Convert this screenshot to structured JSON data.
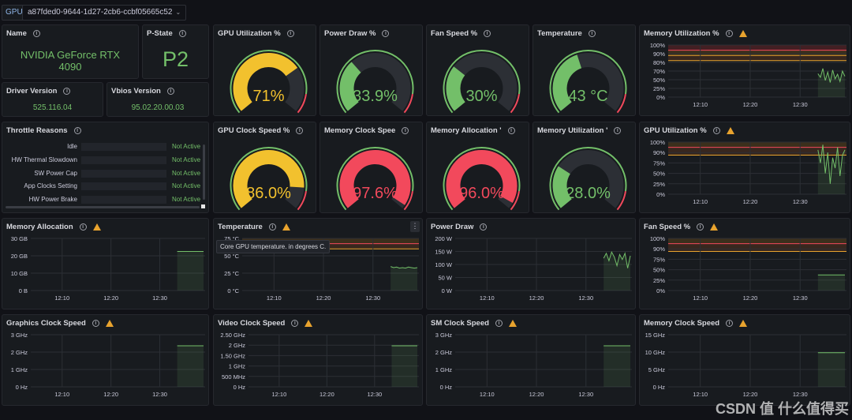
{
  "topbar": {
    "var_label": "GPU",
    "gpu_value": "a87fded0-9644-1d27-2cb6-ccbf05665c52"
  },
  "stats": {
    "name": {
      "title": "Name",
      "value_line1": "NVIDIA GeForce RTX",
      "value_line2": "4090"
    },
    "pstate": {
      "title": "P-State",
      "value": "P2"
    },
    "driver": {
      "title": "Driver Version",
      "value": "525.116.04"
    },
    "vbios": {
      "title": "Vbios Version",
      "value": "95.02.20.00.03"
    }
  },
  "throttle": {
    "title": "Throttle Reasons",
    "rows": [
      {
        "label": "Idle",
        "value": "Not Active"
      },
      {
        "label": "HW Thermal Slowdown",
        "value": "Not Active"
      },
      {
        "label": "SW Power Cap",
        "value": "Not Active"
      },
      {
        "label": "App Clocks Setting",
        "value": "Not Active"
      },
      {
        "label": "HW Power Brake",
        "value": "Not Active"
      }
    ]
  },
  "gauges": [
    {
      "title": "GPU Utilization %",
      "display": "71%",
      "value": 71,
      "color": "#f2c12e",
      "warn": false
    },
    {
      "title": "Power Draw %",
      "display": "33.9%",
      "value": 33.9,
      "color": "#73bf69",
      "warn": false
    },
    {
      "title": "Fan Speed %",
      "display": "30%",
      "value": 30,
      "color": "#73bf69",
      "warn": false
    },
    {
      "title": "Temperature",
      "display": "43 °C",
      "value": 43,
      "color": "#73bf69",
      "warn": false
    },
    {
      "title": "GPU Clock Speed %",
      "display": "86.0%",
      "value": 86,
      "color": "#f2c12e",
      "warn": false
    },
    {
      "title": "Memory Clock Spee",
      "display": "97.6%",
      "value": 97.6,
      "color": "#f2495c",
      "warn": false
    },
    {
      "title": "Memory Allocation '",
      "display": "96.0%",
      "value": 96,
      "color": "#f2495c",
      "warn": false
    },
    {
      "title": "Memory Utilization '",
      "display": "28.0%",
      "value": 28,
      "color": "#73bf69",
      "warn": false
    }
  ],
  "tooltip": {
    "text": "Core GPU temperature. in degrees C."
  },
  "watermark": {
    "text": "CSDN 值 什么值得买"
  },
  "chart_data": [
    {
      "type": "line",
      "title": "Memory Utilization %",
      "x_ticks": [
        "12:10",
        "12:20",
        "12:30"
      ],
      "y_ticks": [
        "100%",
        "90%",
        "80%",
        "70%",
        "50%",
        "25%",
        "0%"
      ],
      "ylim": [
        0,
        100
      ],
      "thresholds": [
        70,
        80,
        90
      ],
      "values": [
        45,
        38,
        55,
        32,
        48,
        28,
        52,
        35,
        44,
        30,
        50,
        40
      ]
    },
    {
      "type": "line",
      "title": "GPU Utilization %",
      "x_ticks": [
        "12:10",
        "12:20",
        "12:30"
      ],
      "y_ticks": [
        "100%",
        "90%",
        "75%",
        "50%",
        "25%",
        "0%"
      ],
      "ylim": [
        0,
        100
      ],
      "thresholds": [
        75,
        90
      ],
      "values": [
        85,
        60,
        95,
        40,
        80,
        20,
        70,
        50,
        90,
        35,
        75,
        85
      ]
    },
    {
      "type": "line",
      "title": "Memory Allocation",
      "x_ticks": [
        "12:10",
        "12:20",
        "12:30"
      ],
      "y_ticks": [
        "30 GB",
        "20 GB",
        "10 GB",
        "0 B"
      ],
      "ylim": [
        0,
        32
      ],
      "thresholds": [],
      "values": [
        24,
        24,
        24,
        24,
        24,
        24,
        24,
        24
      ]
    },
    {
      "type": "line",
      "title": "Temperature",
      "x_ticks": [
        "12:10",
        "12:20",
        "12:30"
      ],
      "y_ticks": [
        "75 °C",
        "50 °C",
        "25 °C",
        "0 °C"
      ],
      "ylim": [
        0,
        100
      ],
      "thresholds": [
        80,
        90
      ],
      "values": [
        46,
        44,
        45,
        43,
        44,
        43,
        45,
        44,
        43,
        44
      ]
    },
    {
      "type": "line",
      "title": "Power Draw",
      "x_ticks": [
        "12:10",
        "12:20",
        "12:30"
      ],
      "y_ticks": [
        "200 W",
        "150 W",
        "100 W",
        "50 W",
        "0 W"
      ],
      "ylim": [
        0,
        210
      ],
      "thresholds": [],
      "values": [
        130,
        150,
        120,
        155,
        135,
        100,
        145,
        125,
        150,
        90,
        140
      ]
    },
    {
      "type": "line",
      "title": "Fan Speed %",
      "x_ticks": [
        "12:10",
        "12:20",
        "12:30"
      ],
      "y_ticks": [
        "100%",
        "90%",
        "75%",
        "50%",
        "25%",
        "0%"
      ],
      "ylim": [
        0,
        100
      ],
      "thresholds": [
        75,
        90
      ],
      "values": [
        30,
        30,
        30,
        30,
        30,
        30,
        30
      ]
    },
    {
      "type": "line",
      "title": "Graphics Clock Speed",
      "x_ticks": [
        "12:10",
        "12:20",
        "12:30"
      ],
      "y_ticks": [
        "3 GHz",
        "2 GHz",
        "1 GHz",
        "0 Hz"
      ],
      "ylim": [
        0,
        3.3
      ],
      "thresholds": [],
      "values": [
        2.6,
        2.6,
        2.6,
        2.6,
        2.6,
        2.6,
        2.6
      ]
    },
    {
      "type": "line",
      "title": "Video Clock Speed",
      "x_ticks": [
        "12:10",
        "12:20",
        "12:30"
      ],
      "y_ticks": [
        "2.50 GHz",
        "2 GHz",
        "1.50 GHz",
        "1 GHz",
        "500 MHz",
        "0 Hz"
      ],
      "ylim": [
        0,
        2.6
      ],
      "thresholds": [],
      "values": [
        2.05,
        2.05,
        2.05,
        2.05,
        2.05,
        2.05
      ]
    },
    {
      "type": "line",
      "title": "SM Clock Speed",
      "x_ticks": [
        "12:10",
        "12:20",
        "12:30"
      ],
      "y_ticks": [
        "3 GHz",
        "2 GHz",
        "1 GHz",
        "0 Hz"
      ],
      "ylim": [
        0,
        3.3
      ],
      "thresholds": [],
      "values": [
        2.6,
        2.6,
        2.6,
        2.6,
        2.6,
        2.6,
        2.6
      ]
    },
    {
      "type": "line",
      "title": "Memory Clock Speed",
      "x_ticks": [
        "12:10",
        "12:20",
        "12:30"
      ],
      "y_ticks": [
        "15 GHz",
        "10 GHz",
        "5 GHz",
        "0 Hz"
      ],
      "ylim": [
        0,
        16
      ],
      "thresholds": [],
      "values": [
        10.5,
        10.5,
        10.5,
        10.5,
        10.5,
        10.5
      ]
    }
  ]
}
